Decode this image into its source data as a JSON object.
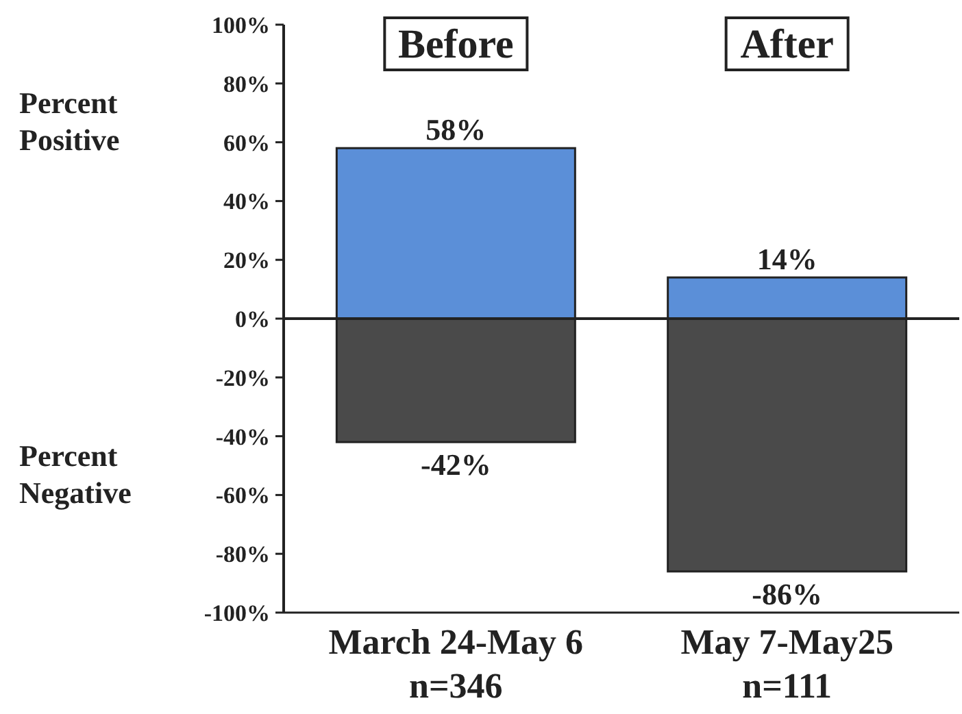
{
  "chart_data": {
    "type": "bar",
    "categories": [
      "March 24-May 6\nn=346",
      "May 7-May25\nn=111"
    ],
    "series": [
      {
        "color": "#5b8fd8",
        "values": [
          58,
          14
        ],
        "value_labels": [
          "58%",
          "14%"
        ]
      },
      {
        "color": "#4a4a4a",
        "values": [
          -42,
          -86
        ],
        "value_labels": [
          "-42%",
          "-86%"
        ]
      }
    ],
    "ylim": [
      -100,
      100
    ],
    "yticks": [
      {
        "value": -100,
        "label": "-100%"
      },
      {
        "value": -80,
        "label": "-80%"
      },
      {
        "value": -60,
        "label": "-60%"
      },
      {
        "value": -40,
        "label": "-40%"
      },
      {
        "value": -20,
        "label": "-20%"
      },
      {
        "value": 0,
        "label": "0%"
      },
      {
        "value": 20,
        "label": "20%"
      },
      {
        "value": 40,
        "label": "40%"
      },
      {
        "value": 60,
        "label": "60%"
      },
      {
        "value": 80,
        "label": "80%"
      },
      {
        "value": 100,
        "label": "100%"
      }
    ],
    "annotations": [
      "Before",
      "After",
      "Percent\nPositive",
      "Percent\nNegative"
    ],
    "stacked": true
  }
}
